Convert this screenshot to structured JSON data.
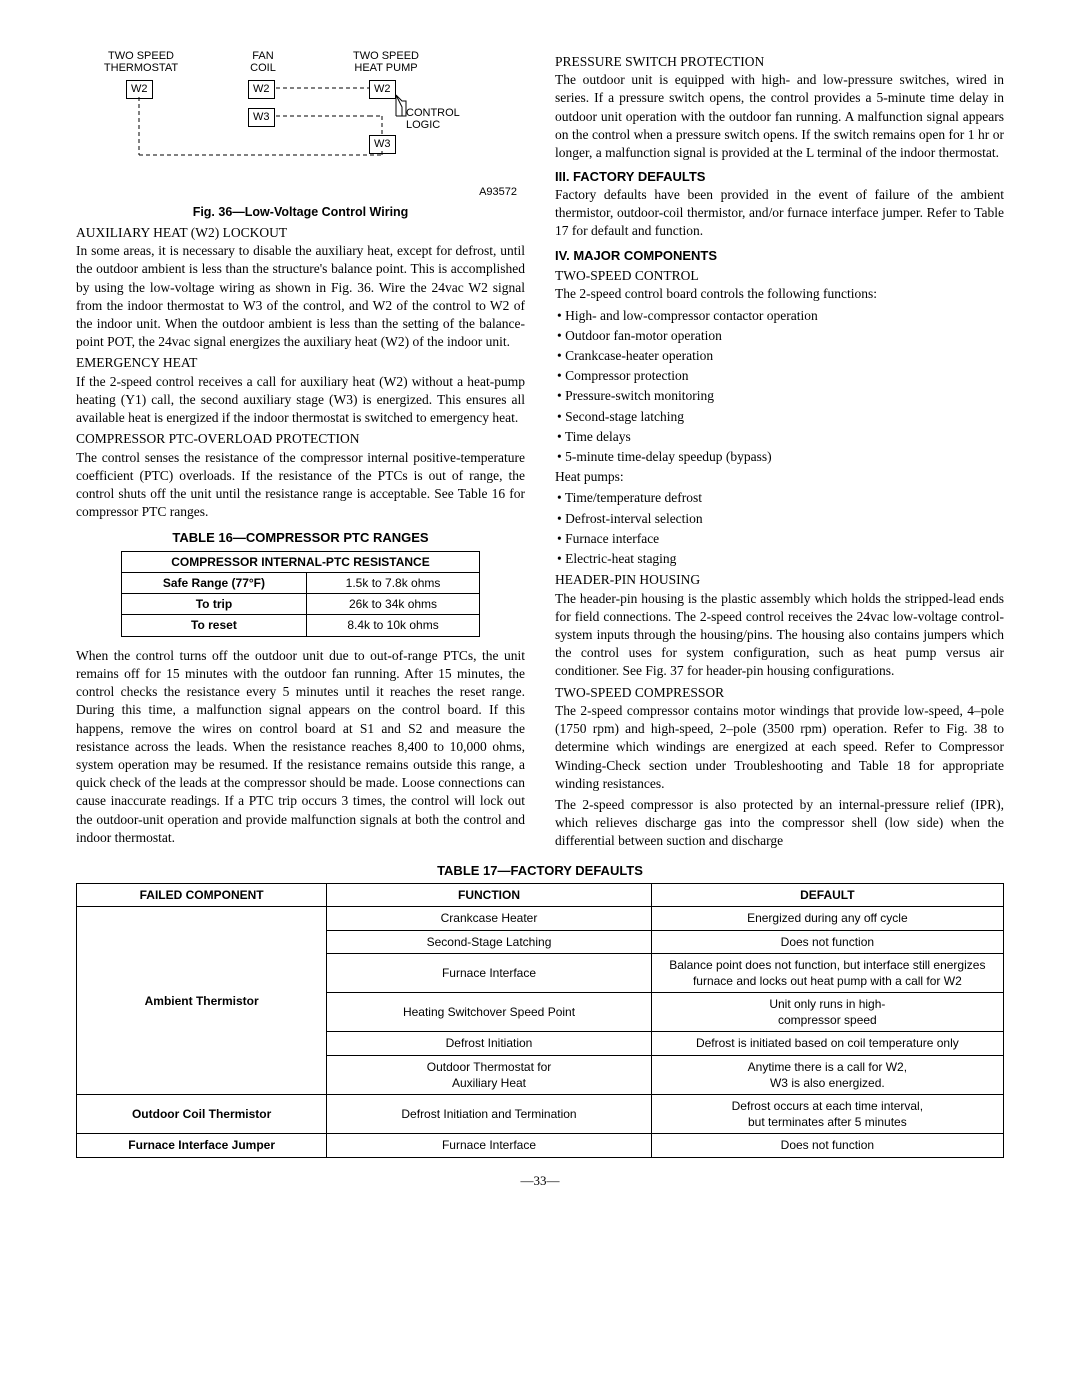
{
  "diagram": {
    "labels": {
      "thermostat": "TWO SPEED\nTHERMOSTAT",
      "fancoil": "FAN\nCOIL",
      "heatpump": "TWO SPEED\nHEAT PUMP",
      "control": "CONTROL\nLOGIC"
    },
    "boxes": {
      "w2": "W2",
      "w3": "W3"
    },
    "fignum": "A93572"
  },
  "fig_caption": "Fig. 36—Low-Voltage Control Wiring",
  "left": {
    "aux_heat_title": "AUXILIARY HEAT (W2) LOCKOUT",
    "aux_heat_body": "In some areas, it is necessary to disable the auxiliary heat, except for defrost, until the outdoor ambient is less than the structure's balance point. This is accomplished by using the low-voltage wiring as shown in Fig. 36. Wire the 24vac W2 signal from the indoor thermostat to W3 of the control, and W2 of the control to W2 of the indoor unit. When the outdoor ambient is less than the setting of the balance-point POT, the 24vac signal energizes the auxiliary heat (W2) of the indoor unit.",
    "emerg_title": "EMERGENCY HEAT",
    "emerg_body": "If the 2-speed control receives a call for auxiliary heat (W2) without a heat-pump heating (Y1) call, the second auxiliary stage (W3) is energized. This ensures all available heat is energized if the indoor thermostat is switched to emergency heat.",
    "ptc_title": "COMPRESSOR PTC-OVERLOAD PROTECTION",
    "ptc_body": "The control senses the resistance of the compressor internal positive-temperature coefficient (PTC) overloads. If the resistance of the PTCs is out of range, the control shuts off the unit until the resistance range is acceptable. See Table 16 for compressor PTC ranges.",
    "table16_title": "TABLE 16—COMPRESSOR PTC RANGES",
    "table16": {
      "header": "COMPRESSOR INTERNAL-PTC RESISTANCE",
      "rows": [
        [
          "Safe Range (77°F)",
          "1.5k to 7.8k ohms"
        ],
        [
          "To trip",
          "26k to 34k ohms"
        ],
        [
          "To reset",
          "8.4k to 10k ohms"
        ]
      ]
    },
    "ptc_after": "When the control turns off the outdoor unit due to out-of-range PTCs, the unit remains off for 15 minutes with the outdoor fan running. After 15 minutes, the control checks the resistance every 5 minutes until it reaches the reset range. During this time, a malfunction signal appears on the control board. If this happens, remove the wires on control board at S1 and S2 and measure the resistance across the leads. When the resistance reaches 8,400 to 10,000 ohms, system operation may be resumed. If the resistance remains outside this range, a quick check of the leads at the compressor should be made. Loose connections can cause inaccurate readings. If a PTC trip occurs 3 times, the control will lock out the outdoor-unit operation and provide malfunction signals at both the control and indoor thermostat."
  },
  "right": {
    "psp_title": "PRESSURE SWITCH PROTECTION",
    "psp_body": "The outdoor unit is equipped with high- and low-pressure switches, wired in series. If a pressure switch opens, the control provides a 5-minute time delay in outdoor unit operation with the outdoor fan running. A malfunction signal appears on the control when a pressure switch opens. If the switch remains open for 1 hr or longer, a malfunction signal is provided at the L terminal of the indoor thermostat.",
    "iii_title": "III.   FACTORY DEFAULTS",
    "iii_body": "Factory defaults have been provided in the event of failure of the ambient thermistor, outdoor-coil thermistor, and/or furnace interface jumper. Refer to Table 17 for default and function.",
    "iv_title": "IV.   MAJOR COMPONENTS",
    "tsc_title": "TWO-SPEED CONTROL",
    "tsc_intro": "The 2-speed control board controls the following functions:",
    "tsc_list": [
      "High- and low-compressor contactor operation",
      "Outdoor fan-motor operation",
      "Crankcase-heater operation",
      "Compressor protection",
      "Pressure-switch monitoring",
      "Second-stage latching",
      "Time delays",
      "5-minute time-delay speedup (bypass)"
    ],
    "hp_label": "Heat pumps:",
    "hp_list": [
      "Time/temperature defrost",
      "Defrost-interval selection",
      "Furnace interface",
      "Electric-heat staging"
    ],
    "hph_title": "HEADER-PIN HOUSING",
    "hph_body": "The header-pin housing is the plastic assembly which holds the stripped-lead ends for field connections. The 2-speed control receives the 24vac low-voltage control-system inputs through the housing/pins. The housing also contains jumpers which the control uses for system configuration, such as heat pump versus air conditioner. See Fig. 37 for header-pin housing configurations.",
    "tscomp_title": "TWO-SPEED COMPRESSOR",
    "tscomp_body1": "The 2-speed compressor contains motor windings that provide low-speed, 4–pole (1750 rpm) and high-speed, 2–pole (3500 rpm) operation. Refer to Fig. 38 to determine which windings are energized at each speed. Refer to Compressor Winding-Check section under Troubleshooting and Table 18 for appropriate winding resistances.",
    "tscomp_body2": "The 2-speed compressor is also protected by an internal-pressure relief (IPR), which relieves discharge gas into the compressor shell (low side) when the differential between suction and discharge"
  },
  "table17_title": "TABLE 17—FACTORY DEFAULTS",
  "table17": {
    "headers": [
      "FAILED COMPONENT",
      "FUNCTION",
      "DEFAULT"
    ],
    "group1_label": "Ambient Thermistor",
    "group1": [
      [
        "Crankcase Heater",
        "Energized during any off cycle"
      ],
      [
        "Second-Stage Latching",
        "Does not function"
      ],
      [
        "Furnace Interface",
        "Balance point does not function, but interface still energizes furnace and locks out heat pump with a call for W2"
      ],
      [
        "Heating Switchover Speed Point",
        "Unit only runs in high-\ncompressor speed"
      ],
      [
        "Defrost Initiation",
        "Defrost is initiated based on coil temperature only"
      ],
      [
        "Outdoor Thermostat for\nAuxiliary Heat",
        "Anytime there is a call for W2,\nW3 is also energized."
      ]
    ],
    "row2": [
      "Outdoor Coil Thermistor",
      "Defrost Initiation and Termination",
      "Defrost occurs at each time interval,\nbut terminates after 5 minutes"
    ],
    "row3": [
      "Furnace Interface Jumper",
      "Furnace Interface",
      "Does not function"
    ]
  },
  "page_num": "—33—"
}
